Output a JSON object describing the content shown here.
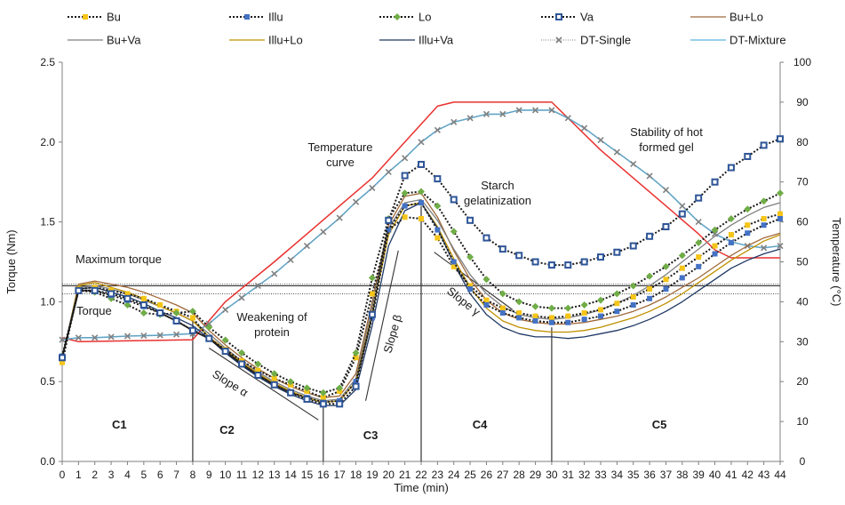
{
  "chart_data": {
    "type": "line",
    "xlabel": "Time (min)",
    "ylabel": "Torque (Nm)",
    "y2label": "Temperature (°C)",
    "xlim": [
      0,
      44
    ],
    "ylim": [
      0,
      2.5
    ],
    "y2lim": [
      0,
      100
    ],
    "x_ticks": [
      "0",
      "1",
      "2",
      "3",
      "4",
      "5",
      "6",
      "7",
      "8",
      "9",
      "10",
      "11",
      "12",
      "13",
      "14",
      "15",
      "16",
      "17",
      "18",
      "19",
      "20",
      "21",
      "22",
      "23",
      "24",
      "25",
      "26",
      "27",
      "28",
      "29",
      "30",
      "31",
      "32",
      "33",
      "34",
      "35",
      "36",
      "37",
      "38",
      "39",
      "40",
      "41",
      "42",
      "43",
      "44"
    ],
    "y_ticks": [
      "0.0",
      "0.5",
      "1.0",
      "1.5",
      "2.0",
      "2.5"
    ],
    "y2_ticks": [
      "0",
      "10",
      "20",
      "30",
      "40",
      "50",
      "60",
      "70",
      "80",
      "90",
      "100"
    ],
    "grid": false,
    "legend_position": "top",
    "series": [
      {
        "name": "Bu",
        "axis": "left",
        "color": "#1a1a1a",
        "marker": "square",
        "marker_color": "#f5c518",
        "x": [
          0,
          1,
          2,
          3,
          4,
          5,
          6,
          7,
          8,
          9,
          10,
          11,
          12,
          13,
          14,
          15,
          16,
          17,
          18,
          19,
          20,
          21,
          22,
          23,
          24,
          25,
          26,
          27,
          28,
          29,
          30,
          31,
          32,
          33,
          34,
          35,
          36,
          37,
          38,
          39,
          40,
          41,
          42,
          43,
          44
        ],
        "values": [
          0.62,
          1.08,
          1.09,
          1.07,
          1.05,
          1.02,
          0.98,
          0.94,
          0.9,
          0.77,
          0.7,
          0.63,
          0.57,
          0.52,
          0.48,
          0.44,
          0.4,
          0.44,
          0.65,
          1.05,
          1.45,
          1.53,
          1.52,
          1.4,
          1.22,
          1.1,
          1.01,
          0.96,
          0.93,
          0.91,
          0.9,
          0.91,
          0.93,
          0.95,
          0.99,
          1.03,
          1.08,
          1.14,
          1.21,
          1.28,
          1.35,
          1.42,
          1.48,
          1.52,
          1.55
        ]
      },
      {
        "name": "Illu",
        "axis": "left",
        "color": "#1a1a1a",
        "marker": "square",
        "marker_color": "#4472c4",
        "x": [
          0,
          1,
          2,
          3,
          4,
          5,
          6,
          7,
          8,
          9,
          10,
          11,
          12,
          13,
          14,
          15,
          16,
          17,
          18,
          19,
          20,
          21,
          22,
          23,
          24,
          25,
          26,
          27,
          28,
          29,
          30,
          31,
          32,
          33,
          34,
          35,
          36,
          37,
          38,
          39,
          40,
          41,
          42,
          43,
          44
        ],
        "values": [
          0.66,
          1.07,
          1.07,
          1.04,
          1.01,
          0.97,
          0.93,
          0.88,
          0.82,
          0.77,
          0.69,
          0.61,
          0.54,
          0.48,
          0.43,
          0.4,
          0.37,
          0.38,
          0.5,
          0.9,
          1.45,
          1.6,
          1.62,
          1.45,
          1.25,
          1.08,
          0.98,
          0.93,
          0.9,
          0.88,
          0.87,
          0.87,
          0.89,
          0.91,
          0.94,
          0.98,
          1.02,
          1.08,
          1.15,
          1.22,
          1.3,
          1.37,
          1.43,
          1.48,
          1.52
        ]
      },
      {
        "name": "Lo",
        "axis": "left",
        "color": "#1a1a1a",
        "marker": "diamond",
        "marker_color": "#70ad47",
        "x": [
          0,
          1,
          2,
          3,
          4,
          5,
          6,
          7,
          8,
          9,
          10,
          11,
          12,
          13,
          14,
          15,
          16,
          17,
          18,
          19,
          20,
          21,
          22,
          23,
          24,
          25,
          26,
          27,
          28,
          29,
          30,
          31,
          32,
          33,
          34,
          35,
          36,
          37,
          38,
          39,
          40,
          41,
          42,
          43,
          44
        ],
        "values": [
          0.66,
          1.07,
          1.06,
          1.02,
          0.98,
          0.93,
          0.92,
          0.93,
          0.94,
          0.84,
          0.76,
          0.68,
          0.61,
          0.55,
          0.5,
          0.46,
          0.43,
          0.46,
          0.68,
          1.15,
          1.52,
          1.68,
          1.69,
          1.6,
          1.44,
          1.28,
          1.14,
          1.05,
          1.0,
          0.97,
          0.96,
          0.96,
          0.98,
          1.01,
          1.05,
          1.1,
          1.16,
          1.22,
          1.29,
          1.37,
          1.45,
          1.52,
          1.58,
          1.63,
          1.68
        ]
      },
      {
        "name": "Va",
        "axis": "left",
        "color": "#1a1a1a",
        "marker": "square-open",
        "marker_color": "#2e5597",
        "x": [
          0,
          1,
          2,
          3,
          4,
          5,
          6,
          7,
          8,
          9,
          10,
          11,
          12,
          13,
          14,
          15,
          16,
          17,
          18,
          19,
          20,
          21,
          22,
          23,
          24,
          25,
          26,
          27,
          28,
          29,
          30,
          31,
          32,
          33,
          34,
          35,
          36,
          37,
          38,
          39,
          40,
          41,
          42,
          43,
          44
        ],
        "values": [
          0.65,
          1.07,
          1.07,
          1.05,
          1.02,
          0.98,
          0.93,
          0.88,
          0.82,
          0.77,
          0.69,
          0.61,
          0.54,
          0.48,
          0.43,
          0.39,
          0.36,
          0.36,
          0.47,
          0.92,
          1.51,
          1.79,
          1.86,
          1.77,
          1.64,
          1.51,
          1.4,
          1.33,
          1.29,
          1.25,
          1.23,
          1.23,
          1.25,
          1.28,
          1.31,
          1.35,
          1.41,
          1.47,
          1.55,
          1.65,
          1.75,
          1.84,
          1.91,
          1.98,
          2.02
        ]
      },
      {
        "name": "Bu+Lo",
        "axis": "left",
        "color": "#a0693a",
        "marker": "none",
        "x": [
          0,
          1,
          2,
          3,
          4,
          5,
          6,
          7,
          8,
          9,
          10,
          11,
          12,
          13,
          14,
          15,
          16,
          17,
          18,
          19,
          20,
          21,
          22,
          23,
          24,
          25,
          26,
          27,
          28,
          29,
          30,
          31,
          32,
          33,
          34,
          35,
          36,
          37,
          38,
          39,
          40,
          41,
          42,
          43,
          44
        ],
        "values": [
          0.64,
          1.11,
          1.13,
          1.11,
          1.09,
          1.06,
          1.02,
          0.98,
          0.93,
          0.82,
          0.73,
          0.65,
          0.58,
          0.52,
          0.47,
          0.43,
          0.4,
          0.41,
          0.55,
          1.0,
          1.48,
          1.66,
          1.68,
          1.53,
          1.32,
          1.14,
          1.01,
          0.93,
          0.89,
          0.87,
          0.86,
          0.86,
          0.87,
          0.89,
          0.91,
          0.94,
          0.98,
          1.03,
          1.09,
          1.15,
          1.22,
          1.29,
          1.35,
          1.4,
          1.43
        ]
      },
      {
        "name": "Bu+Va",
        "axis": "left",
        "color": "#7f7f7f",
        "marker": "none",
        "x": [
          0,
          1,
          2,
          3,
          4,
          5,
          6,
          7,
          8,
          9,
          10,
          11,
          12,
          13,
          14,
          15,
          16,
          17,
          18,
          19,
          20,
          21,
          22,
          23,
          24,
          25,
          26,
          27,
          28,
          29,
          30,
          31,
          32,
          33,
          34,
          35,
          36,
          37,
          38,
          39,
          40,
          41,
          42,
          43,
          44
        ],
        "values": [
          0.65,
          1.09,
          1.1,
          1.08,
          1.05,
          1.01,
          0.97,
          0.93,
          0.88,
          0.8,
          0.71,
          0.63,
          0.56,
          0.5,
          0.45,
          0.41,
          0.38,
          0.39,
          0.52,
          0.97,
          1.46,
          1.62,
          1.64,
          1.51,
          1.33,
          1.17,
          1.05,
          0.97,
          0.92,
          0.9,
          0.89,
          0.9,
          0.92,
          0.95,
          0.99,
          1.04,
          1.1,
          1.17,
          1.25,
          1.33,
          1.41,
          1.48,
          1.54,
          1.59,
          1.62
        ]
      },
      {
        "name": "Illu+Lo",
        "axis": "left",
        "color": "#bf9000",
        "marker": "none",
        "x": [
          0,
          1,
          2,
          3,
          4,
          5,
          6,
          7,
          8,
          9,
          10,
          11,
          12,
          13,
          14,
          15,
          16,
          17,
          18,
          19,
          20,
          21,
          22,
          23,
          24,
          25,
          26,
          27,
          28,
          29,
          30,
          31,
          32,
          33,
          34,
          35,
          36,
          37,
          38,
          39,
          40,
          41,
          42,
          43,
          44
        ],
        "values": [
          0.64,
          1.1,
          1.12,
          1.09,
          1.06,
          1.02,
          0.97,
          0.93,
          0.88,
          0.78,
          0.7,
          0.62,
          0.55,
          0.49,
          0.44,
          0.4,
          0.37,
          0.38,
          0.5,
          0.93,
          1.42,
          1.6,
          1.62,
          1.47,
          1.27,
          1.09,
          0.96,
          0.88,
          0.84,
          0.82,
          0.81,
          0.81,
          0.82,
          0.84,
          0.87,
          0.9,
          0.94,
          0.99,
          1.05,
          1.12,
          1.19,
          1.26,
          1.32,
          1.38,
          1.42
        ]
      },
      {
        "name": "Illu+Va",
        "axis": "left",
        "color": "#1f3864",
        "marker": "none",
        "x": [
          0,
          1,
          2,
          3,
          4,
          5,
          6,
          7,
          8,
          9,
          10,
          11,
          12,
          13,
          14,
          15,
          16,
          17,
          18,
          19,
          20,
          21,
          22,
          23,
          24,
          25,
          26,
          27,
          28,
          29,
          30,
          31,
          32,
          33,
          34,
          35,
          36,
          37,
          38,
          39,
          40,
          41,
          42,
          43,
          44
        ],
        "values": [
          0.65,
          1.08,
          1.09,
          1.06,
          1.03,
          0.99,
          0.94,
          0.9,
          0.85,
          0.77,
          0.68,
          0.6,
          0.53,
          0.47,
          0.42,
          0.38,
          0.35,
          0.35,
          0.45,
          0.85,
          1.35,
          1.57,
          1.62,
          1.46,
          1.24,
          1.05,
          0.92,
          0.84,
          0.8,
          0.78,
          0.78,
          0.77,
          0.78,
          0.8,
          0.82,
          0.85,
          0.89,
          0.94,
          1.0,
          1.07,
          1.14,
          1.21,
          1.26,
          1.3,
          1.33
        ]
      },
      {
        "name": "DT-Single",
        "axis": "right",
        "color": "#7f7f7f",
        "marker": "x",
        "marker_color": "#808080",
        "x": [
          0,
          1,
          2,
          3,
          4,
          5,
          6,
          7,
          8,
          9,
          10,
          11,
          12,
          13,
          14,
          15,
          16,
          17,
          18,
          19,
          20,
          21,
          22,
          23,
          24,
          25,
          26,
          27,
          28,
          29,
          30,
          31,
          32,
          33,
          34,
          35,
          36,
          37,
          38,
          39,
          40,
          41,
          42,
          43,
          44
        ],
        "values": [
          30.5,
          31,
          31,
          31.2,
          31.4,
          31.5,
          31.6,
          31.8,
          32,
          34.5,
          38,
          41,
          44,
          47,
          50.5,
          54,
          57.5,
          61,
          65,
          68.5,
          72.5,
          76,
          80,
          83,
          85,
          86,
          87,
          87,
          88,
          88,
          88,
          86,
          83.5,
          80.5,
          77.5,
          74.5,
          71.5,
          68,
          64,
          60,
          57,
          55,
          54,
          53.5,
          54
        ]
      },
      {
        "name": "DT-Mixture",
        "axis": "right",
        "color": "#5ab3e0",
        "marker": "none",
        "x": [
          0,
          1,
          2,
          3,
          4,
          5,
          6,
          7,
          8,
          9,
          10,
          11,
          12,
          13,
          14,
          15,
          16,
          17,
          18,
          19,
          20,
          21,
          22,
          23,
          24,
          25,
          26,
          27,
          28,
          29,
          30,
          31,
          32,
          33,
          34,
          35,
          36,
          37,
          38,
          39,
          40,
          41,
          42,
          43,
          44
        ],
        "values": [
          30.5,
          31,
          31,
          31.2,
          31.4,
          31.5,
          31.6,
          31.8,
          32,
          34.5,
          38,
          41,
          44,
          47,
          50.5,
          54,
          57.5,
          61,
          65,
          68.5,
          72.5,
          76,
          80,
          83,
          85,
          86,
          87,
          87,
          88,
          88,
          88,
          86,
          83.5,
          80.5,
          77.5,
          74.5,
          71.5,
          68,
          64,
          60,
          57,
          55,
          54,
          53.5,
          54
        ]
      },
      {
        "name": "Temperature curve",
        "axis": "right",
        "color": "#e8312f",
        "marker": "none",
        "in_legend": false,
        "x": [
          0,
          1,
          8,
          10,
          13,
          15,
          17,
          19,
          21,
          23,
          24,
          30,
          31,
          33,
          35,
          37,
          39,
          40,
          41,
          42,
          44
        ],
        "values": [
          31,
          30,
          30.5,
          40,
          50,
          57,
          64,
          71,
          80,
          89,
          90,
          90,
          86,
          78,
          71,
          64,
          57,
          53,
          51,
          51,
          51
        ]
      }
    ],
    "reference_lines_torque": [
      1.11,
      1.1,
      1.05
    ],
    "dividers_x": [
      8,
      16,
      22,
      30
    ],
    "annotations": {
      "max_torque": "Maximum torque",
      "torque": "Torque",
      "weakening_line1": "Weakening of",
      "weakening_line2": "protein",
      "temperature_line1": "Temperature",
      "temperature_line2": "curve",
      "starch_line1": "Starch",
      "starch_line2": "gelatinization",
      "stability_line1": "Stability of hot",
      "stability_line2": "formed gel",
      "slope_alpha": "Slope α",
      "slope_beta": "Slope β",
      "slope_gamma": "Slope γ"
    },
    "regions": [
      {
        "label": "C1",
        "x": 3.5
      },
      {
        "label": "C2",
        "x": 10.1
      },
      {
        "label": "C3",
        "x": 18.9
      },
      {
        "label": "C4",
        "x": 25.6
      },
      {
        "label": "C5",
        "x": 36.6
      }
    ]
  }
}
